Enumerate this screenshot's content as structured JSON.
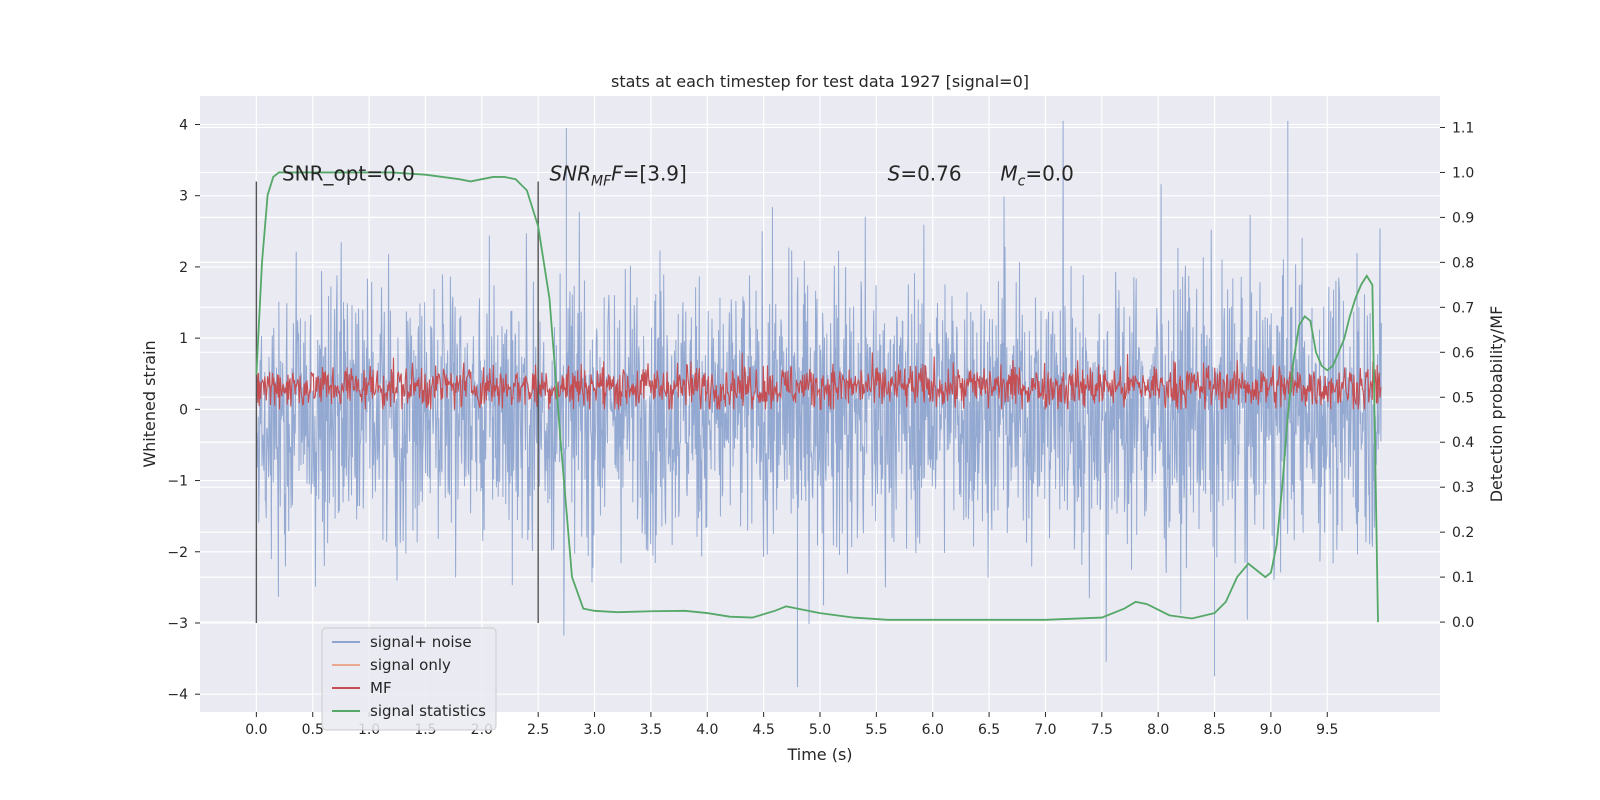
{
  "chart_data": {
    "type": "line",
    "title": "stats at each timestep for test data 1927 [signal=0]",
    "xlabel": "Time (s)",
    "ylabel": "Whitened strain",
    "y2label": "Detection probability/MF",
    "xlim": [
      -0.5,
      10.5
    ],
    "ylim": [
      -4.25,
      4.4
    ],
    "y2lim": [
      -0.2,
      1.17
    ],
    "xticks": [
      0.0,
      0.5,
      1.0,
      1.5,
      2.0,
      2.5,
      3.0,
      3.5,
      4.0,
      4.5,
      5.0,
      5.5,
      6.0,
      6.5,
      7.0,
      7.5,
      8.0,
      8.5,
      9.0,
      9.5
    ],
    "xtick_labels": [
      "0.0",
      "0.5",
      "1.0",
      "1.5",
      "2.0",
      "2.5",
      "3.0",
      "3.5",
      "4.0",
      "4.5",
      "5.0",
      "5.5",
      "6.0",
      "6.5",
      "7.0",
      "7.5",
      "8.0",
      "8.5",
      "9.0",
      "9.5"
    ],
    "yticks": [
      -4,
      -3,
      -2,
      -1,
      0,
      1,
      2,
      3,
      4
    ],
    "ytick_labels": [
      "−4",
      "−3",
      "−2",
      "−1",
      "0",
      "1",
      "2",
      "3",
      "4"
    ],
    "y2ticks": [
      0.0,
      0.1,
      0.2,
      0.3,
      0.4,
      0.5,
      0.6,
      0.7,
      0.8,
      0.9,
      1.0,
      1.1
    ],
    "y2tick_labels": [
      "0.0",
      "0.1",
      "0.2",
      "0.3",
      "0.4",
      "0.5",
      "0.6",
      "0.7",
      "0.8",
      "0.9",
      "1.0",
      "1.1"
    ],
    "grid": true,
    "legend_position": "bottom-left",
    "legend": [
      {
        "label": "signal+ noise",
        "color": "#8fa5cf"
      },
      {
        "label": "signal only",
        "color": "#eaa98f"
      },
      {
        "label": "MF",
        "color": "#c44e52"
      },
      {
        "label": "signal statistics",
        "color": "#55a868"
      }
    ],
    "vlines": [
      {
        "x": 0.0,
        "ymin": -3.0,
        "ymax": 3.2
      },
      {
        "x": 2.5,
        "ymin": -3.0,
        "ymax": 3.2
      }
    ],
    "annotations": [
      {
        "id": "snr_opt",
        "x": 0.2,
        "y": 3.2,
        "prefix": "SNR_opt=",
        "value": "0.0",
        "sub": ""
      },
      {
        "id": "snr_mf",
        "x": 2.6,
        "y": 3.2,
        "prefix": "SNR",
        "sub": "MF",
        "suffix": "F=",
        "value": "[3.9]"
      },
      {
        "id": "s",
        "x": 5.6,
        "y": 3.2,
        "prefix": "S",
        "value": "=0.76",
        "sub": ""
      },
      {
        "id": "mc",
        "x": 6.6,
        "y": 3.2,
        "prefix": "M",
        "sub": "c",
        "value": "=0.0"
      }
    ],
    "series": [
      {
        "name": "signal+ noise",
        "axis": "left",
        "kind": "noise",
        "x_range": [
          0.0,
          9.98
        ],
        "stats": {
          "center": 0.0,
          "typical_amplitude": 1.7,
          "max": 4.05,
          "min": -3.9,
          "spike_times_up": [
            2.75,
            9.15
          ],
          "spike_times_down": [
            4.8,
            8.5
          ]
        }
      },
      {
        "name": "MF",
        "axis": "left",
        "kind": "noise",
        "x_range": [
          0.0,
          9.98
        ],
        "stats": {
          "center": 0.32,
          "low": 0.0,
          "high": 0.8
        }
      },
      {
        "name": "signal statistics",
        "axis": "right",
        "x": [
          0.0,
          0.05,
          0.1,
          0.15,
          0.2,
          0.3,
          0.5,
          0.8,
          1.2,
          1.5,
          1.8,
          1.9,
          2.0,
          2.1,
          2.2,
          2.3,
          2.4,
          2.5,
          2.6,
          2.7,
          2.8,
          2.9,
          3.0,
          3.2,
          3.5,
          3.8,
          4.0,
          4.2,
          4.4,
          4.6,
          4.7,
          4.8,
          5.0,
          5.3,
          5.6,
          6.0,
          6.5,
          7.0,
          7.5,
          7.7,
          7.8,
          7.9,
          8.1,
          8.3,
          8.5,
          8.6,
          8.7,
          8.8,
          8.9,
          8.95,
          9.0,
          9.05,
          9.1,
          9.15,
          9.2,
          9.25,
          9.3,
          9.35,
          9.4,
          9.45,
          9.5,
          9.55,
          9.6,
          9.65,
          9.7,
          9.75,
          9.8,
          9.85,
          9.9,
          9.95
        ],
        "y": [
          0.55,
          0.8,
          0.95,
          0.99,
          1.0,
          1.0,
          1.0,
          1.0,
          1.0,
          0.995,
          0.985,
          0.98,
          0.985,
          0.99,
          0.99,
          0.985,
          0.96,
          0.88,
          0.72,
          0.4,
          0.1,
          0.03,
          0.025,
          0.022,
          0.024,
          0.025,
          0.02,
          0.012,
          0.01,
          0.025,
          0.035,
          0.03,
          0.02,
          0.01,
          0.005,
          0.005,
          0.005,
          0.005,
          0.01,
          0.03,
          0.045,
          0.04,
          0.015,
          0.008,
          0.02,
          0.045,
          0.1,
          0.13,
          0.11,
          0.1,
          0.11,
          0.17,
          0.3,
          0.46,
          0.58,
          0.66,
          0.68,
          0.67,
          0.6,
          0.57,
          0.56,
          0.57,
          0.6,
          0.63,
          0.68,
          0.72,
          0.75,
          0.77,
          0.75,
          0.0
        ]
      }
    ]
  }
}
